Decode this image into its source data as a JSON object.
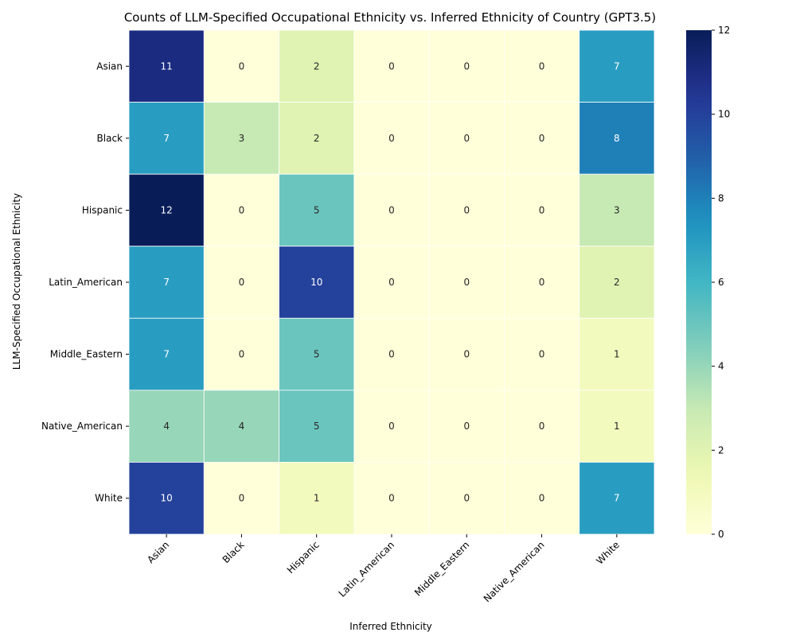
{
  "chart_data": {
    "type": "heatmap",
    "title": "Counts of LLM-Specified Occupational Ethnicity vs. Inferred Ethnicity of Country (GPT3.5)",
    "xlabel": "Inferred Ethnicity",
    "ylabel": "LLM-Specified Occupational Ethnicity",
    "x_categories": [
      "Asian",
      "Black",
      "Hispanic",
      "Latin_American",
      "Middle_Eastern",
      "Native_American",
      "White"
    ],
    "y_categories": [
      "Asian",
      "Black",
      "Hispanic",
      "Latin_American",
      "Middle_Eastern",
      "Native_American",
      "White"
    ],
    "values": [
      [
        11,
        0,
        2,
        0,
        0,
        0,
        7
      ],
      [
        7,
        3,
        2,
        0,
        0,
        0,
        8
      ],
      [
        12,
        0,
        5,
        0,
        0,
        0,
        3
      ],
      [
        7,
        0,
        10,
        0,
        0,
        0,
        2
      ],
      [
        7,
        0,
        5,
        0,
        0,
        0,
        1
      ],
      [
        4,
        4,
        5,
        0,
        0,
        0,
        1
      ],
      [
        10,
        0,
        1,
        0,
        0,
        0,
        7
      ]
    ],
    "colormap": "YlGnBu",
    "vmin": 0,
    "vmax": 12,
    "colorbar_ticks": [
      0,
      2,
      4,
      6,
      8,
      10,
      12
    ]
  }
}
